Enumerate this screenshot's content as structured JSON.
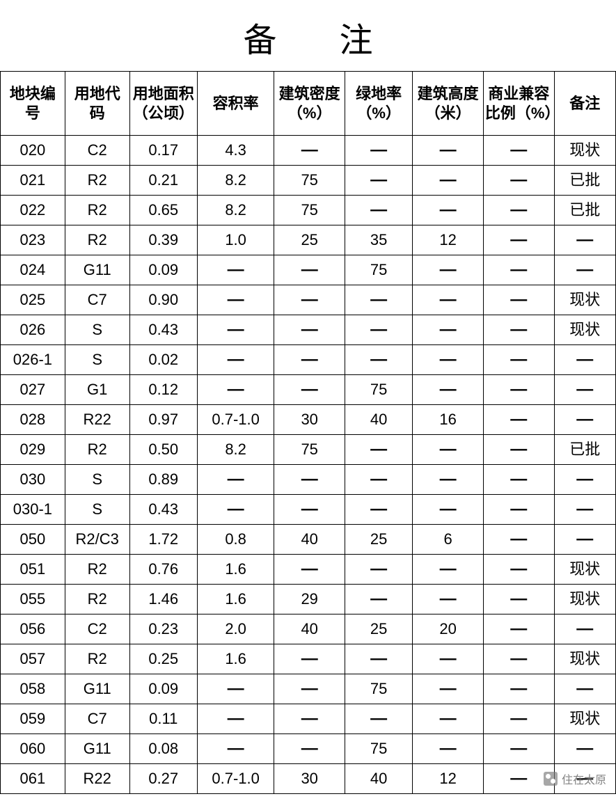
{
  "title": "备注",
  "dash_glyph": "—",
  "watermark": {
    "text": "住在太原"
  },
  "table": {
    "type": "table",
    "background_color": "#ffffff",
    "border_color": "#000000",
    "text_color": "#000000",
    "header_fontsize": 22,
    "cell_fontsize": 22,
    "columns": [
      "地块编号",
      "用地代码",
      "用地面积（公顷）",
      "容积率",
      "建筑密度（%）",
      "绿地率（%）",
      "建筑高度（米）",
      "商业兼容比例（%）",
      "备注"
    ],
    "rows": [
      [
        "020",
        "C2",
        "0.17",
        "4.3",
        "—",
        "—",
        "—",
        "—",
        "现状"
      ],
      [
        "021",
        "R2",
        "0.21",
        "8.2",
        "75",
        "—",
        "—",
        "—",
        "已批"
      ],
      [
        "022",
        "R2",
        "0.65",
        "8.2",
        "75",
        "—",
        "—",
        "—",
        "已批"
      ],
      [
        "023",
        "R2",
        "0.39",
        "1.0",
        "25",
        "35",
        "12",
        "—",
        "—"
      ],
      [
        "024",
        "G11",
        "0.09",
        "—",
        "—",
        "75",
        "—",
        "—",
        "—"
      ],
      [
        "025",
        "C7",
        "0.90",
        "—",
        "—",
        "—",
        "—",
        "—",
        "现状"
      ],
      [
        "026",
        "S",
        "0.43",
        "—",
        "—",
        "—",
        "—",
        "—",
        "现状"
      ],
      [
        "026-1",
        "S",
        "0.02",
        "—",
        "—",
        "—",
        "—",
        "—",
        "—"
      ],
      [
        "027",
        "G1",
        "0.12",
        "—",
        "—",
        "75",
        "—",
        "—",
        "—"
      ],
      [
        "028",
        "R22",
        "0.97",
        "0.7-1.0",
        "30",
        "40",
        "16",
        "—",
        "—"
      ],
      [
        "029",
        "R2",
        "0.50",
        "8.2",
        "75",
        "—",
        "—",
        "—",
        "已批"
      ],
      [
        "030",
        "S",
        "0.89",
        "—",
        "—",
        "—",
        "—",
        "—",
        "—"
      ],
      [
        "030-1",
        "S",
        "0.43",
        "—",
        "—",
        "—",
        "—",
        "—",
        "—"
      ],
      [
        "050",
        "R2/C3",
        "1.72",
        "0.8",
        "40",
        "25",
        "6",
        "—",
        "—"
      ],
      [
        "051",
        "R2",
        "0.76",
        "1.6",
        "—",
        "—",
        "—",
        "—",
        "现状"
      ],
      [
        "055",
        "R2",
        "1.46",
        "1.6",
        "29",
        "—",
        "—",
        "—",
        "现状"
      ],
      [
        "056",
        "C2",
        "0.23",
        "2.0",
        "40",
        "25",
        "20",
        "—",
        "—"
      ],
      [
        "057",
        "R2",
        "0.25",
        "1.6",
        "—",
        "—",
        "—",
        "—",
        "现状"
      ],
      [
        "058",
        "G11",
        "0.09",
        "—",
        "—",
        "75",
        "—",
        "—",
        "—"
      ],
      [
        "059",
        "C7",
        "0.11",
        "—",
        "—",
        "—",
        "—",
        "—",
        "现状"
      ],
      [
        "060",
        "G11",
        "0.08",
        "—",
        "—",
        "75",
        "—",
        "—",
        "—"
      ],
      [
        "061",
        "R22",
        "0.27",
        "0.7-1.0",
        "30",
        "40",
        "12",
        "—",
        "—"
      ]
    ]
  }
}
